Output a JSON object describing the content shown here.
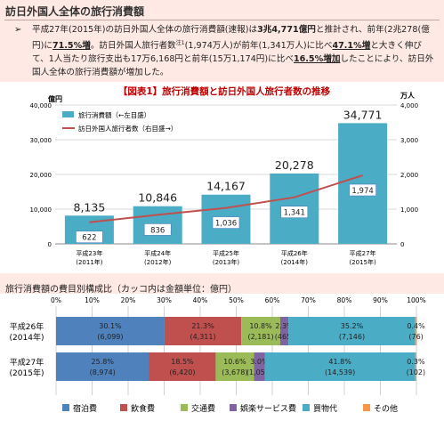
{
  "page_title": "訪日外国人全体の旅行消費額",
  "summary": {
    "bullet": "➢",
    "seg1": "平成27年(2015年)の訪日外国人全体の旅行消費額(速報)は",
    "seg2": "3兆4,771億円",
    "seg3": "と推計され、前年(2兆278(億円)に",
    "seg4": "71.5%増",
    "seg5": "。訪日外国人旅行者数",
    "seg5sup": "注1",
    "seg6": "(1,974万人)が前年(1,341万人)に比べ",
    "seg7": "47.1%増",
    "seg8": "と大きく伸びて、1人当たり旅行支出も17万6,168円と前年(15万1,174円)に比べ",
    "seg9": "16.5%増加",
    "seg10": "したことにより、訪日外国人全体の旅行消費額が増加した。"
  },
  "section2_title": "旅行消費額の費目別構成比（カッコ内は金額単位：億円）",
  "colors": {
    "bar": "#4bacc6",
    "line": "#c0504d",
    "value_box_stroke": "#4a7ebb",
    "title_red": "#c00000",
    "stack": [
      "#4f81bd",
      "#c0504d",
      "#9bbb59",
      "#8064a2",
      "#4bacc6",
      "#f79646"
    ]
  },
  "chart_data": [
    {
      "type": "bar",
      "title": "【図表1】旅行消費額と訪日外国人旅行者数の推移",
      "categories": [
        [
          "平成23年",
          "(2011年)"
        ],
        [
          "平成24年",
          "(2012年)"
        ],
        [
          "平成25年",
          "(2013年)"
        ],
        [
          "平成26年",
          "(2014年)"
        ],
        [
          "平成27年",
          "(2015年)"
        ]
      ],
      "ylabel_left": "億円",
      "ylabel_right": "万人",
      "y_left_ticks": [
        "0",
        "10,000",
        "20,000",
        "30,000",
        "40,000"
      ],
      "y_right_ticks": [
        "0",
        "1,000",
        "2,000",
        "3,000",
        "4,000"
      ],
      "ylim_left": [
        0,
        40000
      ],
      "ylim_right": [
        0,
        4000
      ],
      "series": [
        {
          "name": "旅行消費額（←左目盛）",
          "kind": "bar",
          "axis": "left",
          "values": [
            8135,
            10846,
            14167,
            20278,
            34771
          ],
          "labels": [
            "8,135",
            "10,846",
            "14,167",
            "20,278",
            "34,771"
          ]
        },
        {
          "name": "訪日外国人旅行者数（右目盛→）",
          "kind": "line",
          "axis": "right",
          "values": [
            622,
            836,
            1036,
            1341,
            1974
          ],
          "labels": [
            "622",
            "836",
            "1,036",
            "1,341",
            "1,974"
          ]
        }
      ],
      "legend": "top-left",
      "grid": true
    },
    {
      "type": "bar",
      "orientation": "horizontal",
      "stacked": true,
      "x_ticks": [
        "0%",
        "10%",
        "20%",
        "30%",
        "40%",
        "50%",
        "60%",
        "70%",
        "80%",
        "90%",
        "100%"
      ],
      "xlim": [
        0,
        100
      ],
      "categories": [
        [
          "平成26年",
          "(2014年)"
        ],
        [
          "平成27年",
          "(2015年)"
        ]
      ],
      "series": [
        {
          "name": "宿泊費",
          "values": [
            30.1,
            25.8
          ],
          "labels": [
            "30.1%",
            "25.8%"
          ],
          "amounts": [
            "(6,099)",
            "(8,974)"
          ]
        },
        {
          "name": "飲食費",
          "values": [
            21.3,
            18.5
          ],
          "labels": [
            "21.3%",
            "18.5%"
          ],
          "amounts": [
            "(4,311)",
            "(6,420)"
          ]
        },
        {
          "name": "交通費",
          "values": [
            10.8,
            10.6
          ],
          "labels": [
            "10.8%",
            "10.6%"
          ],
          "amounts": [
            "(2,181)",
            "(3,678)"
          ]
        },
        {
          "name": "娯楽サービス費",
          "values": [
            2.3,
            3.0
          ],
          "labels": [
            "2.3%",
            "3.0%"
          ],
          "amounts": [
            "(465)",
            "(1,058)"
          ]
        },
        {
          "name": "買物代",
          "values": [
            35.2,
            41.8
          ],
          "labels": [
            "35.2%",
            "41.8%"
          ],
          "amounts": [
            "(7,146)",
            "(14,539)"
          ]
        },
        {
          "name": "その他",
          "values": [
            0.4,
            0.3
          ],
          "labels": [
            "0.4%",
            "0.3%"
          ],
          "amounts": [
            "(76)",
            "(102)"
          ]
        }
      ],
      "legend": "bottom",
      "grid": true
    }
  ]
}
